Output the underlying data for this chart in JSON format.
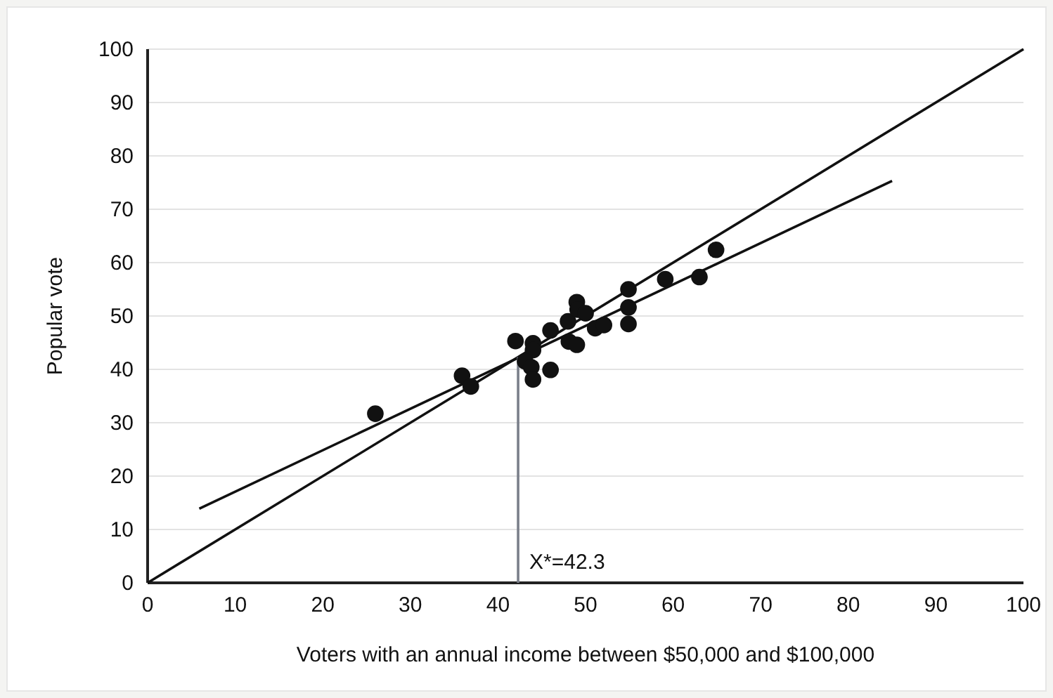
{
  "chart_data": {
    "type": "scatter",
    "xlabel": "Voters with an annual income between $50,000 and $100,000",
    "ylabel": "Popular vote",
    "xlim": [
      0,
      100
    ],
    "xticks": [
      0,
      10,
      20,
      30,
      40,
      50,
      60,
      70,
      80,
      90,
      100
    ],
    "ylim": [
      0,
      100
    ],
    "yticks": [
      0,
      10,
      20,
      30,
      40,
      50,
      60,
      70,
      80,
      90,
      100
    ],
    "grid": "y",
    "series": [
      {
        "marker": "circle",
        "color": "#111111",
        "x": [
          26.0,
          35.9,
          36.9,
          42.0,
          44.0,
          44.0,
          43.1,
          43.8,
          44.0,
          46.0,
          46.0,
          48.0,
          48.1,
          49.0,
          49.0,
          49.1,
          50.0,
          51.1,
          52.1,
          54.9,
          54.9,
          54.9,
          59.1,
          63.0,
          64.9
        ],
        "values": [
          31.7,
          38.8,
          36.8,
          45.3,
          44.9,
          43.6,
          41.5,
          40.4,
          38.1,
          39.9,
          47.3,
          49.0,
          45.2,
          44.6,
          52.6,
          51.2,
          50.5,
          47.7,
          48.3,
          55.0,
          51.6,
          48.5,
          56.9,
          57.3,
          62.4
        ]
      },
      {
        "type": "line",
        "marker": "none",
        "color": "#111111",
        "x": [
          0,
          100
        ],
        "values": [
          0,
          100
        ]
      },
      {
        "type": "line",
        "marker": "none",
        "color": "#111111",
        "x": [
          5.9,
          85.0
        ],
        "values": [
          13.9,
          75.3
        ]
      },
      {
        "type": "line",
        "marker": "none",
        "color": "#7a7f8a",
        "x": [
          42.3,
          42.3
        ],
        "values": [
          0,
          42.3
        ]
      }
    ],
    "annotations": [
      {
        "text": "X*=42.3",
        "x": 42.3,
        "y": 0
      }
    ]
  }
}
